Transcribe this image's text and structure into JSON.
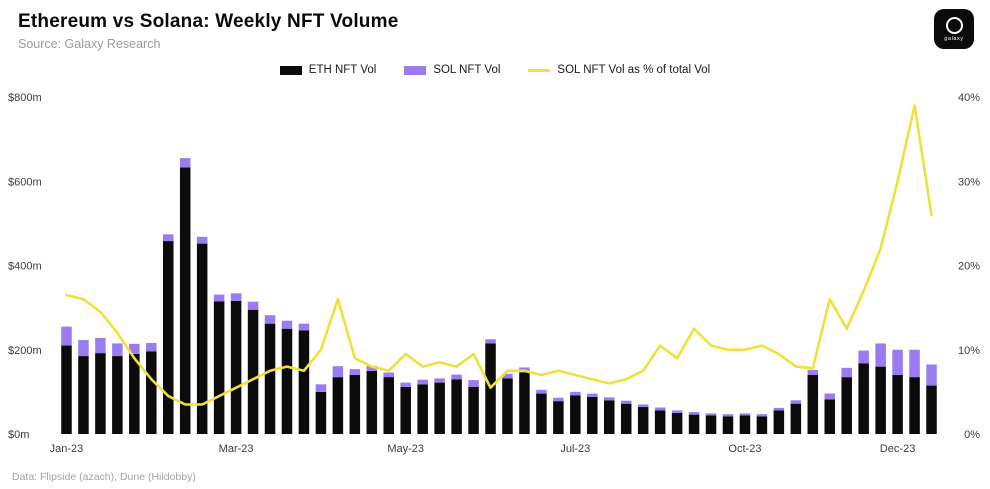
{
  "header": {
    "title": "Ethereum vs Solana: Weekly NFT Volume",
    "source": "Source: Galaxy Research",
    "brand": "galaxy"
  },
  "legend": [
    {
      "label": "ETH NFT Vol"
    },
    {
      "label": "SOL NFT Vol"
    },
    {
      "label": "SOL NFT Vol as % of total Vol"
    }
  ],
  "footer": {
    "credit": "Data: Flipside (azach), Dune (Hildobby)"
  },
  "colors": {
    "eth_bar": "#0B0B0B",
    "sol_bar": "#9A7CF0",
    "sol_share_line": "#F0E13A",
    "background": "#FFFFFF",
    "axis_text": "#3C3C3C"
  },
  "chart_data": {
    "type": "bar",
    "subtype": "stacked-bars-with-line-overlay",
    "title": "Ethereum vs Solana: Weekly NFT Volume",
    "n_points": 52,
    "x_description": "Weekly periods, Jan-23 through Dec-23",
    "x_tick_labels": [
      {
        "index": 0,
        "label": "Jan-23"
      },
      {
        "index": 10,
        "label": "Mar-23"
      },
      {
        "index": 20,
        "label": "May-23"
      },
      {
        "index": 30,
        "label": "Jul-23"
      },
      {
        "index": 40,
        "label": "Oct-23"
      },
      {
        "index": 49,
        "label": "Dec-23"
      }
    ],
    "y_left": {
      "ticks": [
        "$0m",
        "$200m",
        "$400m",
        "$600m",
        "$800m"
      ],
      "tick_values": [
        0,
        200,
        400,
        600,
        800
      ],
      "max": 800,
      "unit": "USD millions"
    },
    "y_right": {
      "ticks": [
        "0%",
        "10%",
        "20%",
        "30%",
        "40%"
      ],
      "tick_values": [
        0,
        10,
        20,
        30,
        40
      ],
      "max": 40,
      "unit": "percent"
    },
    "grid": false,
    "legend_position": "top-center",
    "series": [
      {
        "name": "ETH NFT Vol",
        "type": "bar",
        "stack": "volume",
        "axis": "left",
        "color": "#0B0B0B",
        "values": [
          210,
          185,
          192,
          185,
          190,
          196,
          458,
          633,
          452,
          315,
          316,
          295,
          262,
          250,
          246,
          100,
          135,
          140,
          150,
          135,
          112,
          118,
          122,
          130,
          112,
          215,
          132,
          146,
          96,
          78,
          92,
          88,
          80,
          72,
          64,
          56,
          50,
          46,
          44,
          42,
          44,
          42,
          56,
          72,
          140,
          82,
          135,
          168,
          160,
          140,
          135,
          115
        ]
      },
      {
        "name": "SOL NFT Vol",
        "type": "bar",
        "stack": "volume",
        "axis": "left",
        "color": "#9A7CF0",
        "values": [
          45,
          38,
          36,
          30,
          24,
          20,
          16,
          22,
          16,
          16,
          18,
          19,
          20,
          19,
          16,
          18,
          26,
          14,
          12,
          11,
          10,
          11,
          10,
          11,
          16,
          10,
          11,
          12,
          9,
          8,
          8,
          8,
          7,
          7,
          6,
          7,
          6,
          6,
          5,
          5,
          5,
          5,
          6,
          8,
          12,
          14,
          22,
          30,
          55,
          60,
          65,
          50
        ]
      },
      {
        "name": "SOL NFT Vol as % of total Vol",
        "type": "line",
        "axis": "right",
        "color": "#F0E13A",
        "values": [
          16.5,
          16,
          14.5,
          12,
          9,
          6.5,
          4.5,
          3.5,
          3.5,
          4.5,
          5.5,
          6.5,
          7.5,
          8,
          7.5,
          10,
          16,
          9,
          8,
          7.5,
          9.5,
          8,
          8.5,
          8,
          9.5,
          5.5,
          7.5,
          7.5,
          7,
          7.5,
          7,
          6.5,
          6,
          6.5,
          7.5,
          10.5,
          9,
          12.5,
          10.5,
          10,
          10,
          10.5,
          9.5,
          8,
          7.8,
          16,
          12.5,
          17,
          22,
          30,
          39,
          26
        ]
      }
    ]
  }
}
